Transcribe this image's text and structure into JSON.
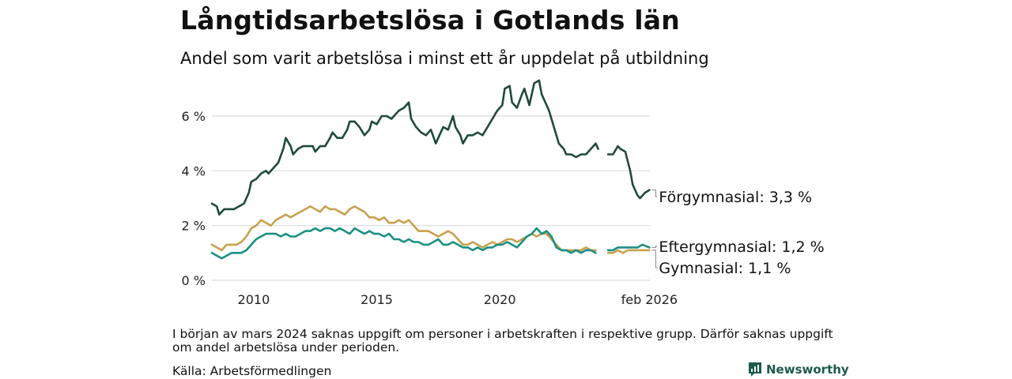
{
  "title": "Långtidsarbetslösa i Gotlands län",
  "subtitle": "Andel som varit arbetslösa i minst ett år uppdelat på utbildning",
  "note": "I början av mars 2024 saknas uppgift om personer i arbetskraften i respektive grupp. Därför saknas uppgift om andel arbetslösa under perioden.",
  "source": "Källa: Arbetsförmedlingen",
  "brand": "Newsworthy",
  "chart_data": {
    "type": "line",
    "xlabel": "",
    "ylabel": "",
    "xlim": [
      2008.3,
      2026.1
    ],
    "ylim": [
      0,
      7.5
    ],
    "grid": true,
    "y_ticks": [
      0,
      2,
      4,
      6
    ],
    "y_tick_labels": [
      "0 %",
      "2 %",
      "4 %",
      "6 %"
    ],
    "x_ticks": [
      2010,
      2015,
      2020,
      2026.08
    ],
    "x_tick_labels": [
      "2010",
      "2015",
      "2020",
      "feb 2026"
    ],
    "gap": [
      2024.15,
      2024.35
    ],
    "series": [
      {
        "name": "Förgymnasial",
        "label": "Förgymnasial: 3,3 %",
        "color": "#1f4a3d",
        "points": [
          [
            2008.3,
            2.8
          ],
          [
            2008.5,
            2.7
          ],
          [
            2008.6,
            2.4
          ],
          [
            2008.8,
            2.6
          ],
          [
            2009.0,
            2.6
          ],
          [
            2009.2,
            2.6
          ],
          [
            2009.4,
            2.7
          ],
          [
            2009.6,
            2.8
          ],
          [
            2009.8,
            3.2
          ],
          [
            2009.9,
            3.6
          ],
          [
            2010.1,
            3.7
          ],
          [
            2010.3,
            3.9
          ],
          [
            2010.5,
            4.0
          ],
          [
            2010.6,
            3.9
          ],
          [
            2010.8,
            4.1
          ],
          [
            2011.0,
            4.3
          ],
          [
            2011.2,
            4.8
          ],
          [
            2011.3,
            5.2
          ],
          [
            2011.5,
            4.9
          ],
          [
            2011.6,
            4.6
          ],
          [
            2011.8,
            4.8
          ],
          [
            2012.0,
            4.9
          ],
          [
            2012.2,
            4.9
          ],
          [
            2012.4,
            4.9
          ],
          [
            2012.5,
            4.7
          ],
          [
            2012.7,
            4.9
          ],
          [
            2012.9,
            4.9
          ],
          [
            2013.1,
            5.2
          ],
          [
            2013.2,
            5.4
          ],
          [
            2013.4,
            5.2
          ],
          [
            2013.6,
            5.2
          ],
          [
            2013.8,
            5.5
          ],
          [
            2013.9,
            5.8
          ],
          [
            2014.1,
            5.8
          ],
          [
            2014.3,
            5.6
          ],
          [
            2014.5,
            5.3
          ],
          [
            2014.7,
            5.5
          ],
          [
            2014.8,
            5.8
          ],
          [
            2015.0,
            5.7
          ],
          [
            2015.2,
            6.0
          ],
          [
            2015.4,
            6.0
          ],
          [
            2015.6,
            5.9
          ],
          [
            2015.8,
            6.1
          ],
          [
            2015.9,
            6.2
          ],
          [
            2016.1,
            6.3
          ],
          [
            2016.3,
            6.5
          ],
          [
            2016.4,
            5.9
          ],
          [
            2016.6,
            5.6
          ],
          [
            2016.8,
            5.4
          ],
          [
            2017.0,
            5.3
          ],
          [
            2017.2,
            5.5
          ],
          [
            2017.4,
            5.0
          ],
          [
            2017.6,
            5.4
          ],
          [
            2017.7,
            5.6
          ],
          [
            2017.9,
            5.5
          ],
          [
            2018.1,
            6.0
          ],
          [
            2018.2,
            5.6
          ],
          [
            2018.4,
            5.3
          ],
          [
            2018.5,
            5.0
          ],
          [
            2018.7,
            5.3
          ],
          [
            2018.9,
            5.3
          ],
          [
            2019.1,
            5.4
          ],
          [
            2019.3,
            5.3
          ],
          [
            2019.5,
            5.6
          ],
          [
            2019.7,
            5.9
          ],
          [
            2019.9,
            6.2
          ],
          [
            2020.1,
            6.4
          ],
          [
            2020.2,
            7.0
          ],
          [
            2020.4,
            7.1
          ],
          [
            2020.5,
            6.5
          ],
          [
            2020.7,
            6.3
          ],
          [
            2020.9,
            6.8
          ],
          [
            2021.0,
            7.0
          ],
          [
            2021.2,
            6.4
          ],
          [
            2021.4,
            7.2
          ],
          [
            2021.6,
            7.3
          ],
          [
            2021.7,
            6.8
          ],
          [
            2021.9,
            6.4
          ],
          [
            2022.0,
            6.2
          ],
          [
            2022.2,
            5.6
          ],
          [
            2022.4,
            5.0
          ],
          [
            2022.6,
            4.8
          ],
          [
            2022.7,
            4.6
          ],
          [
            2022.9,
            4.6
          ],
          [
            2023.1,
            4.5
          ],
          [
            2023.3,
            4.6
          ],
          [
            2023.5,
            4.6
          ],
          [
            2023.7,
            4.8
          ],
          [
            2023.9,
            5.0
          ],
          [
            2024.0,
            4.8
          ],
          [
            2024.15,
            null
          ],
          [
            2024.35,
            null
          ],
          [
            2024.4,
            4.6
          ],
          [
            2024.6,
            4.6
          ],
          [
            2024.8,
            4.9
          ],
          [
            2024.9,
            4.8
          ],
          [
            2025.1,
            4.7
          ],
          [
            2025.3,
            4.0
          ],
          [
            2025.4,
            3.5
          ],
          [
            2025.6,
            3.1
          ],
          [
            2025.7,
            3.0
          ],
          [
            2025.9,
            3.2
          ],
          [
            2026.08,
            3.3
          ]
        ]
      },
      {
        "name": "Eftergymnasial",
        "label": "Eftergymnasial: 1,2 %",
        "color": "#1a9082",
        "points": [
          [
            2008.3,
            1.0
          ],
          [
            2008.5,
            0.9
          ],
          [
            2008.7,
            0.8
          ],
          [
            2008.9,
            0.9
          ],
          [
            2009.1,
            1.0
          ],
          [
            2009.3,
            1.0
          ],
          [
            2009.5,
            1.0
          ],
          [
            2009.7,
            1.1
          ],
          [
            2009.9,
            1.3
          ],
          [
            2010.1,
            1.5
          ],
          [
            2010.3,
            1.6
          ],
          [
            2010.5,
            1.7
          ],
          [
            2010.7,
            1.7
          ],
          [
            2010.9,
            1.7
          ],
          [
            2011.1,
            1.6
          ],
          [
            2011.3,
            1.7
          ],
          [
            2011.5,
            1.6
          ],
          [
            2011.7,
            1.6
          ],
          [
            2011.9,
            1.7
          ],
          [
            2012.1,
            1.8
          ],
          [
            2012.3,
            1.8
          ],
          [
            2012.5,
            1.9
          ],
          [
            2012.7,
            1.8
          ],
          [
            2012.9,
            1.9
          ],
          [
            2013.1,
            1.9
          ],
          [
            2013.3,
            1.8
          ],
          [
            2013.5,
            1.9
          ],
          [
            2013.7,
            1.8
          ],
          [
            2013.9,
            1.7
          ],
          [
            2014.1,
            1.9
          ],
          [
            2014.3,
            1.8
          ],
          [
            2014.5,
            1.7
          ],
          [
            2014.7,
            1.8
          ],
          [
            2014.9,
            1.7
          ],
          [
            2015.1,
            1.7
          ],
          [
            2015.3,
            1.6
          ],
          [
            2015.5,
            1.7
          ],
          [
            2015.7,
            1.5
          ],
          [
            2015.9,
            1.5
          ],
          [
            2016.1,
            1.4
          ],
          [
            2016.3,
            1.5
          ],
          [
            2016.5,
            1.4
          ],
          [
            2016.7,
            1.4
          ],
          [
            2016.9,
            1.3
          ],
          [
            2017.1,
            1.3
          ],
          [
            2017.3,
            1.4
          ],
          [
            2017.5,
            1.5
          ],
          [
            2017.7,
            1.3
          ],
          [
            2017.9,
            1.3
          ],
          [
            2018.1,
            1.4
          ],
          [
            2018.3,
            1.3
          ],
          [
            2018.5,
            1.2
          ],
          [
            2018.7,
            1.2
          ],
          [
            2018.9,
            1.1
          ],
          [
            2019.1,
            1.2
          ],
          [
            2019.3,
            1.1
          ],
          [
            2019.5,
            1.2
          ],
          [
            2019.7,
            1.2
          ],
          [
            2019.9,
            1.3
          ],
          [
            2020.1,
            1.3
          ],
          [
            2020.3,
            1.4
          ],
          [
            2020.5,
            1.3
          ],
          [
            2020.7,
            1.2
          ],
          [
            2020.9,
            1.4
          ],
          [
            2021.1,
            1.6
          ],
          [
            2021.3,
            1.7
          ],
          [
            2021.5,
            1.9
          ],
          [
            2021.7,
            1.7
          ],
          [
            2021.9,
            1.8
          ],
          [
            2022.1,
            1.6
          ],
          [
            2022.3,
            1.2
          ],
          [
            2022.5,
            1.1
          ],
          [
            2022.7,
            1.1
          ],
          [
            2022.9,
            1.0
          ],
          [
            2023.1,
            1.1
          ],
          [
            2023.3,
            1.0
          ],
          [
            2023.5,
            1.1
          ],
          [
            2023.7,
            1.1
          ],
          [
            2023.9,
            1.0
          ],
          [
            2024.15,
            null
          ],
          [
            2024.35,
            null
          ],
          [
            2024.4,
            1.1
          ],
          [
            2024.6,
            1.1
          ],
          [
            2024.8,
            1.2
          ],
          [
            2025.0,
            1.2
          ],
          [
            2025.2,
            1.2
          ],
          [
            2025.4,
            1.2
          ],
          [
            2025.6,
            1.2
          ],
          [
            2025.8,
            1.3
          ],
          [
            2026.08,
            1.2
          ]
        ]
      },
      {
        "name": "Gymnasial",
        "label": "Gymnasial: 1,1 %",
        "color": "#c9a050",
        "points": [
          [
            2008.3,
            1.3
          ],
          [
            2008.5,
            1.2
          ],
          [
            2008.7,
            1.1
          ],
          [
            2008.9,
            1.3
          ],
          [
            2009.1,
            1.3
          ],
          [
            2009.3,
            1.3
          ],
          [
            2009.5,
            1.4
          ],
          [
            2009.7,
            1.6
          ],
          [
            2009.9,
            1.9
          ],
          [
            2010.1,
            2.0
          ],
          [
            2010.3,
            2.2
          ],
          [
            2010.5,
            2.1
          ],
          [
            2010.7,
            2.0
          ],
          [
            2010.9,
            2.2
          ],
          [
            2011.1,
            2.3
          ],
          [
            2011.3,
            2.4
          ],
          [
            2011.5,
            2.3
          ],
          [
            2011.7,
            2.4
          ],
          [
            2011.9,
            2.5
          ],
          [
            2012.1,
            2.6
          ],
          [
            2012.3,
            2.7
          ],
          [
            2012.5,
            2.6
          ],
          [
            2012.7,
            2.5
          ],
          [
            2012.9,
            2.7
          ],
          [
            2013.1,
            2.6
          ],
          [
            2013.3,
            2.6
          ],
          [
            2013.5,
            2.5
          ],
          [
            2013.7,
            2.4
          ],
          [
            2013.9,
            2.6
          ],
          [
            2014.1,
            2.7
          ],
          [
            2014.3,
            2.6
          ],
          [
            2014.5,
            2.5
          ],
          [
            2014.7,
            2.3
          ],
          [
            2014.9,
            2.3
          ],
          [
            2015.1,
            2.2
          ],
          [
            2015.3,
            2.3
          ],
          [
            2015.5,
            2.1
          ],
          [
            2015.7,
            2.1
          ],
          [
            2015.9,
            2.2
          ],
          [
            2016.1,
            2.1
          ],
          [
            2016.3,
            2.2
          ],
          [
            2016.5,
            2.0
          ],
          [
            2016.7,
            1.8
          ],
          [
            2016.9,
            1.8
          ],
          [
            2017.1,
            1.8
          ],
          [
            2017.3,
            1.7
          ],
          [
            2017.5,
            1.6
          ],
          [
            2017.7,
            1.7
          ],
          [
            2017.9,
            1.8
          ],
          [
            2018.1,
            1.7
          ],
          [
            2018.3,
            1.5
          ],
          [
            2018.5,
            1.3
          ],
          [
            2018.7,
            1.3
          ],
          [
            2018.9,
            1.4
          ],
          [
            2019.1,
            1.3
          ],
          [
            2019.3,
            1.2
          ],
          [
            2019.5,
            1.3
          ],
          [
            2019.7,
            1.4
          ],
          [
            2019.9,
            1.3
          ],
          [
            2020.1,
            1.4
          ],
          [
            2020.3,
            1.5
          ],
          [
            2020.5,
            1.5
          ],
          [
            2020.7,
            1.4
          ],
          [
            2020.9,
            1.5
          ],
          [
            2021.1,
            1.6
          ],
          [
            2021.3,
            1.7
          ],
          [
            2021.5,
            1.6
          ],
          [
            2021.7,
            1.7
          ],
          [
            2021.9,
            1.7
          ],
          [
            2022.1,
            1.5
          ],
          [
            2022.3,
            1.3
          ],
          [
            2022.5,
            1.1
          ],
          [
            2022.7,
            1.1
          ],
          [
            2022.9,
            1.1
          ],
          [
            2023.1,
            1.1
          ],
          [
            2023.3,
            1.1
          ],
          [
            2023.5,
            1.2
          ],
          [
            2023.7,
            1.1
          ],
          [
            2023.9,
            1.1
          ],
          [
            2024.15,
            null
          ],
          [
            2024.35,
            null
          ],
          [
            2024.4,
            1.0
          ],
          [
            2024.6,
            1.0
          ],
          [
            2024.8,
            1.1
          ],
          [
            2025.0,
            1.0
          ],
          [
            2025.2,
            1.1
          ],
          [
            2025.4,
            1.1
          ],
          [
            2025.6,
            1.1
          ],
          [
            2025.8,
            1.1
          ],
          [
            2026.08,
            1.1
          ]
        ]
      }
    ]
  }
}
